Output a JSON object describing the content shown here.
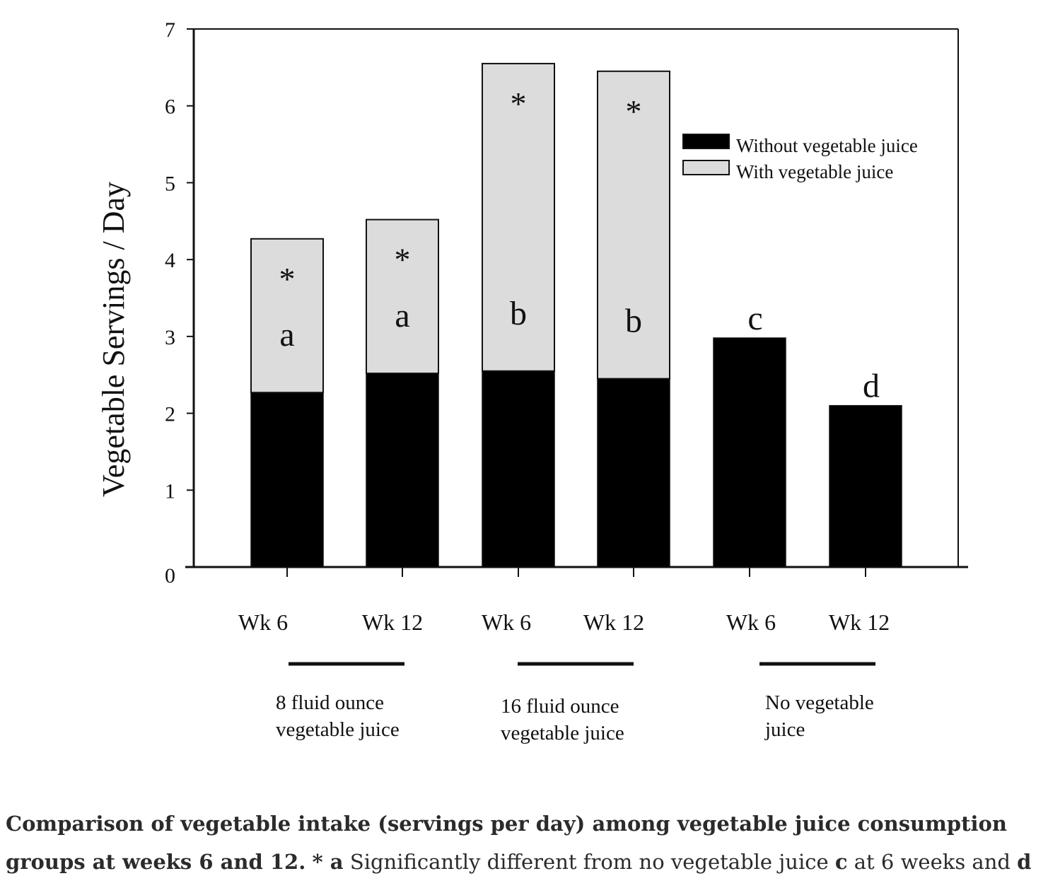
{
  "chart_data": {
    "type": "bar",
    "stacked": true,
    "categories": [
      "Wk 6",
      "Wk 12",
      "Wk 6",
      "Wk 12",
      "Wk 6",
      "Wk 12"
    ],
    "groups": [
      {
        "label_lines": [
          "8 fluid ounce",
          "vegetable juice"
        ],
        "categories": [
          0,
          1
        ]
      },
      {
        "label_lines": [
          "16 fluid ounce",
          "vegetable juice"
        ],
        "categories": [
          2,
          3
        ]
      },
      {
        "label_lines": [
          "No vegetable",
          "juice"
        ],
        "categories": [
          4,
          5
        ]
      }
    ],
    "series": [
      {
        "name": "Without vegetable juice",
        "color": "#000000",
        "values": [
          2.27,
          2.52,
          2.55,
          2.45,
          2.98,
          2.1
        ]
      },
      {
        "name": "With vegetable juice",
        "color": "#dcdcdc",
        "values": [
          2.0,
          2.0,
          4.0,
          4.0,
          0,
          0
        ]
      }
    ],
    "annotations": [
      {
        "category": 0,
        "star": "*",
        "letter": "a"
      },
      {
        "category": 1,
        "star": "*",
        "letter": "a"
      },
      {
        "category": 2,
        "star": "*",
        "letter": "b"
      },
      {
        "category": 3,
        "star": "*",
        "letter": "b"
      },
      {
        "category": 4,
        "star": "",
        "letter": "c"
      },
      {
        "category": 5,
        "star": "",
        "letter": "d"
      }
    ],
    "ylabel": "Vegetable Servings / Day",
    "xlabel": "",
    "ylim": [
      0,
      7
    ],
    "yticks": [
      0,
      1,
      2,
      3,
      4,
      5,
      6,
      7
    ],
    "legend_position": "top-right",
    "grid": false
  },
  "caption": {
    "lead": "Comparison of vegetable intake (servings per day) among vegetable juice consumption groups at weeks 6 and 12.",
    "marker": "* a",
    "text1": "Significantly different from no vegetable juice",
    "marker2": "c",
    "text2": "at 6 weeks and",
    "marker3": "d"
  }
}
